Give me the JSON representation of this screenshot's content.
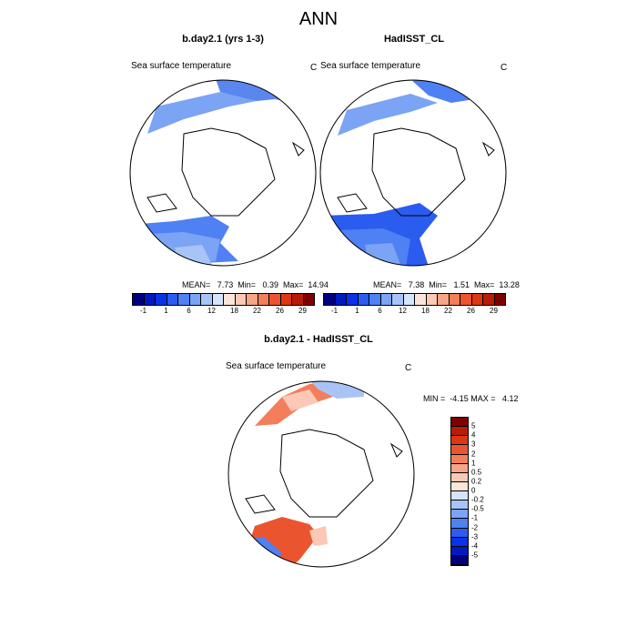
{
  "main_title": "ANN",
  "panels": [
    {
      "title": "b.day2.1 (yrs 1-3)",
      "subtitle": "Sea surface temperature",
      "units": "C",
      "stats": "MEAN=   7.73  Min=   0.39  Max=  14.94"
    },
    {
      "title": "HadISST_CL",
      "subtitle": "Sea surface temperature",
      "units": "C",
      "stats": "MEAN=   7.38  Min=   1.51  Max=  13.28"
    }
  ],
  "diff_panel": {
    "title": "b.day2.1 - HadISST_CL",
    "subtitle": "Sea surface temperature",
    "units": "C",
    "stats": "MIN =  -4.15 MAX =   4.12"
  },
  "colorbar_abs": {
    "colors": [
      "#00007f",
      "#001ac0",
      "#0a32e6",
      "#2a5cf0",
      "#4f80f4",
      "#7ba4f4",
      "#a8c4f6",
      "#d6e4fa",
      "#fbe4d8",
      "#fac8b4",
      "#f6a586",
      "#f27e5c",
      "#ea5530",
      "#dd3612",
      "#b81b08",
      "#7f0000"
    ],
    "labels": [
      "-1",
      "1",
      "6",
      "12",
      "18",
      "22",
      "26",
      "29"
    ]
  },
  "colorbar_diff": {
    "colors": [
      "#7f0000",
      "#b81b08",
      "#dd3612",
      "#ea5530",
      "#f27e5c",
      "#f6a586",
      "#fac8b4",
      "#fbe4d8",
      "#d6e4fa",
      "#a8c4f6",
      "#7ba4f4",
      "#4f80f4",
      "#2a5cf0",
      "#0a32e6",
      "#001ac0",
      "#00007f"
    ],
    "labels": [
      "5",
      "4",
      "3",
      "2",
      "1",
      "0.5",
      "0.2",
      "0",
      "-0.2",
      "-0.5",
      "-1",
      "-2",
      "-3",
      "-4",
      "-5"
    ]
  }
}
